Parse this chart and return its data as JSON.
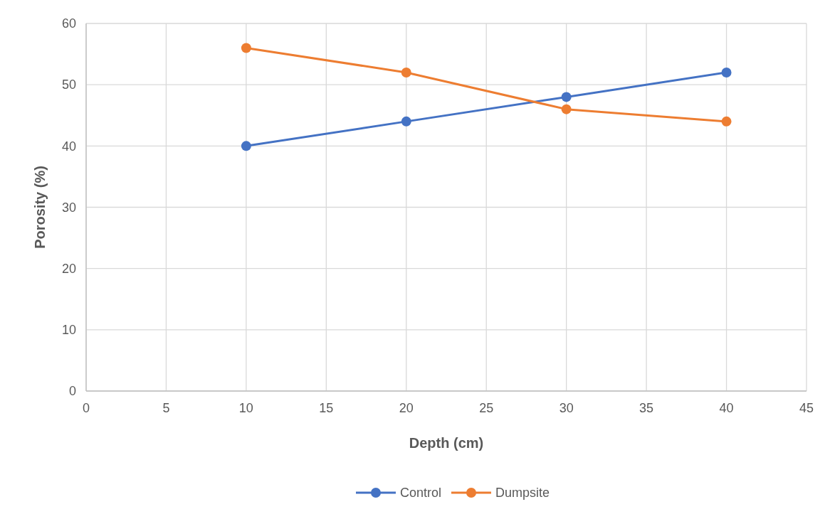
{
  "chart_data": {
    "type": "line",
    "xlabel": "Depth (cm)",
    "ylabel": "Porosity (%)",
    "x": [
      10,
      20,
      30,
      40
    ],
    "series": [
      {
        "name": "Control",
        "color": "#4472c4",
        "values": [
          40,
          44,
          48,
          52
        ]
      },
      {
        "name": "Dumpsite",
        "color": "#ed7d31",
        "values": [
          56,
          52,
          46,
          44
        ]
      }
    ],
    "xlim": [
      0,
      45
    ],
    "xticks": [
      0,
      5,
      10,
      15,
      20,
      25,
      30,
      35,
      40,
      45
    ],
    "ylim": [
      0,
      60
    ],
    "yticks": [
      0,
      10,
      20,
      30,
      40,
      50,
      60
    ],
    "grid": true,
    "legend": "bottom",
    "marker": "circle",
    "line_style": "solid"
  }
}
